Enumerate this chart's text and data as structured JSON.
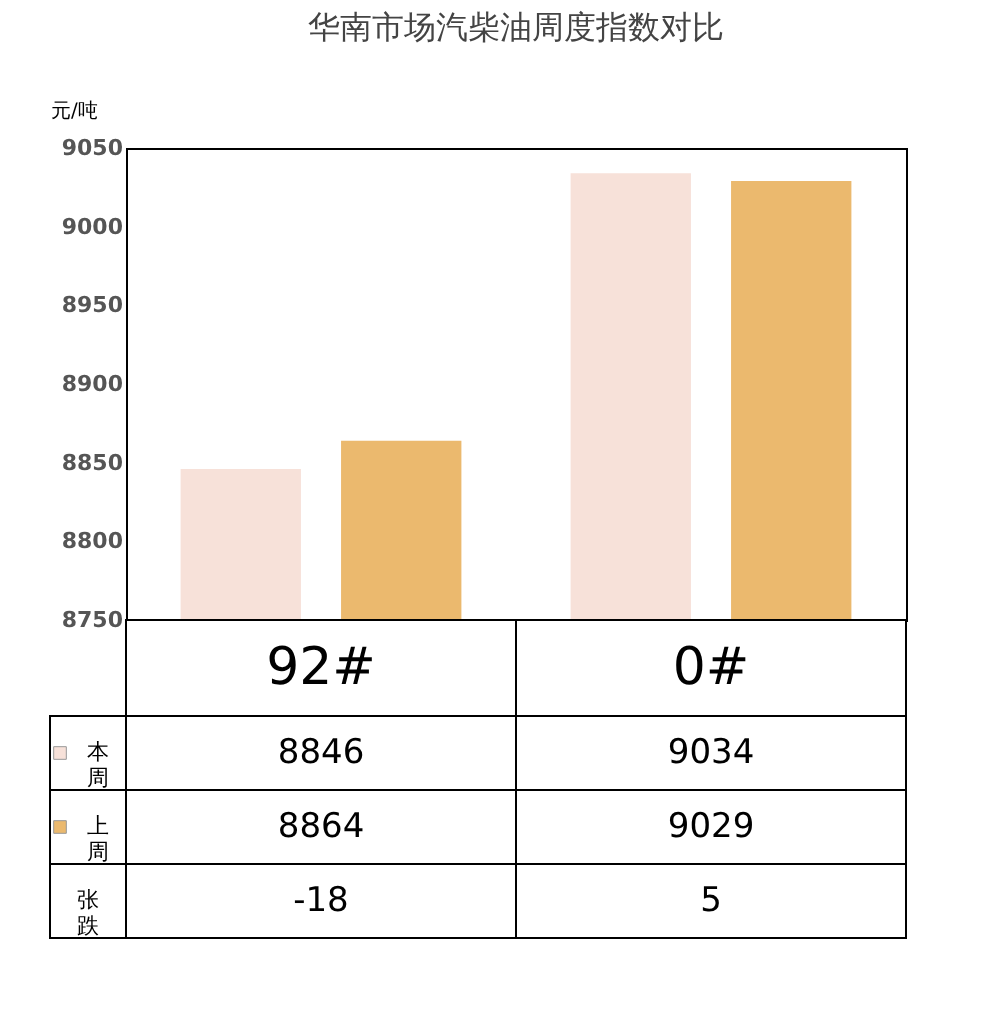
{
  "chart_data": {
    "type": "bar",
    "title": "华南市场汽柴油周度指数对比",
    "ylabel": "元/吨",
    "categories": [
      "92#",
      "0#"
    ],
    "series": [
      {
        "name": "本周",
        "color": "#f7e1d9",
        "values": [
          8846,
          9034
        ]
      },
      {
        "name": "上周",
        "color": "#ebb96e",
        "values": [
          8864,
          9029
        ]
      }
    ],
    "ylim": [
      8750,
      9050
    ],
    "yticks": [
      8750,
      8800,
      8850,
      8900,
      8950,
      9000,
      9050
    ],
    "data_labels": true,
    "legend": "bottom left",
    "annotations": [
      "张跌",
      "-18",
      "5"
    ]
  }
}
